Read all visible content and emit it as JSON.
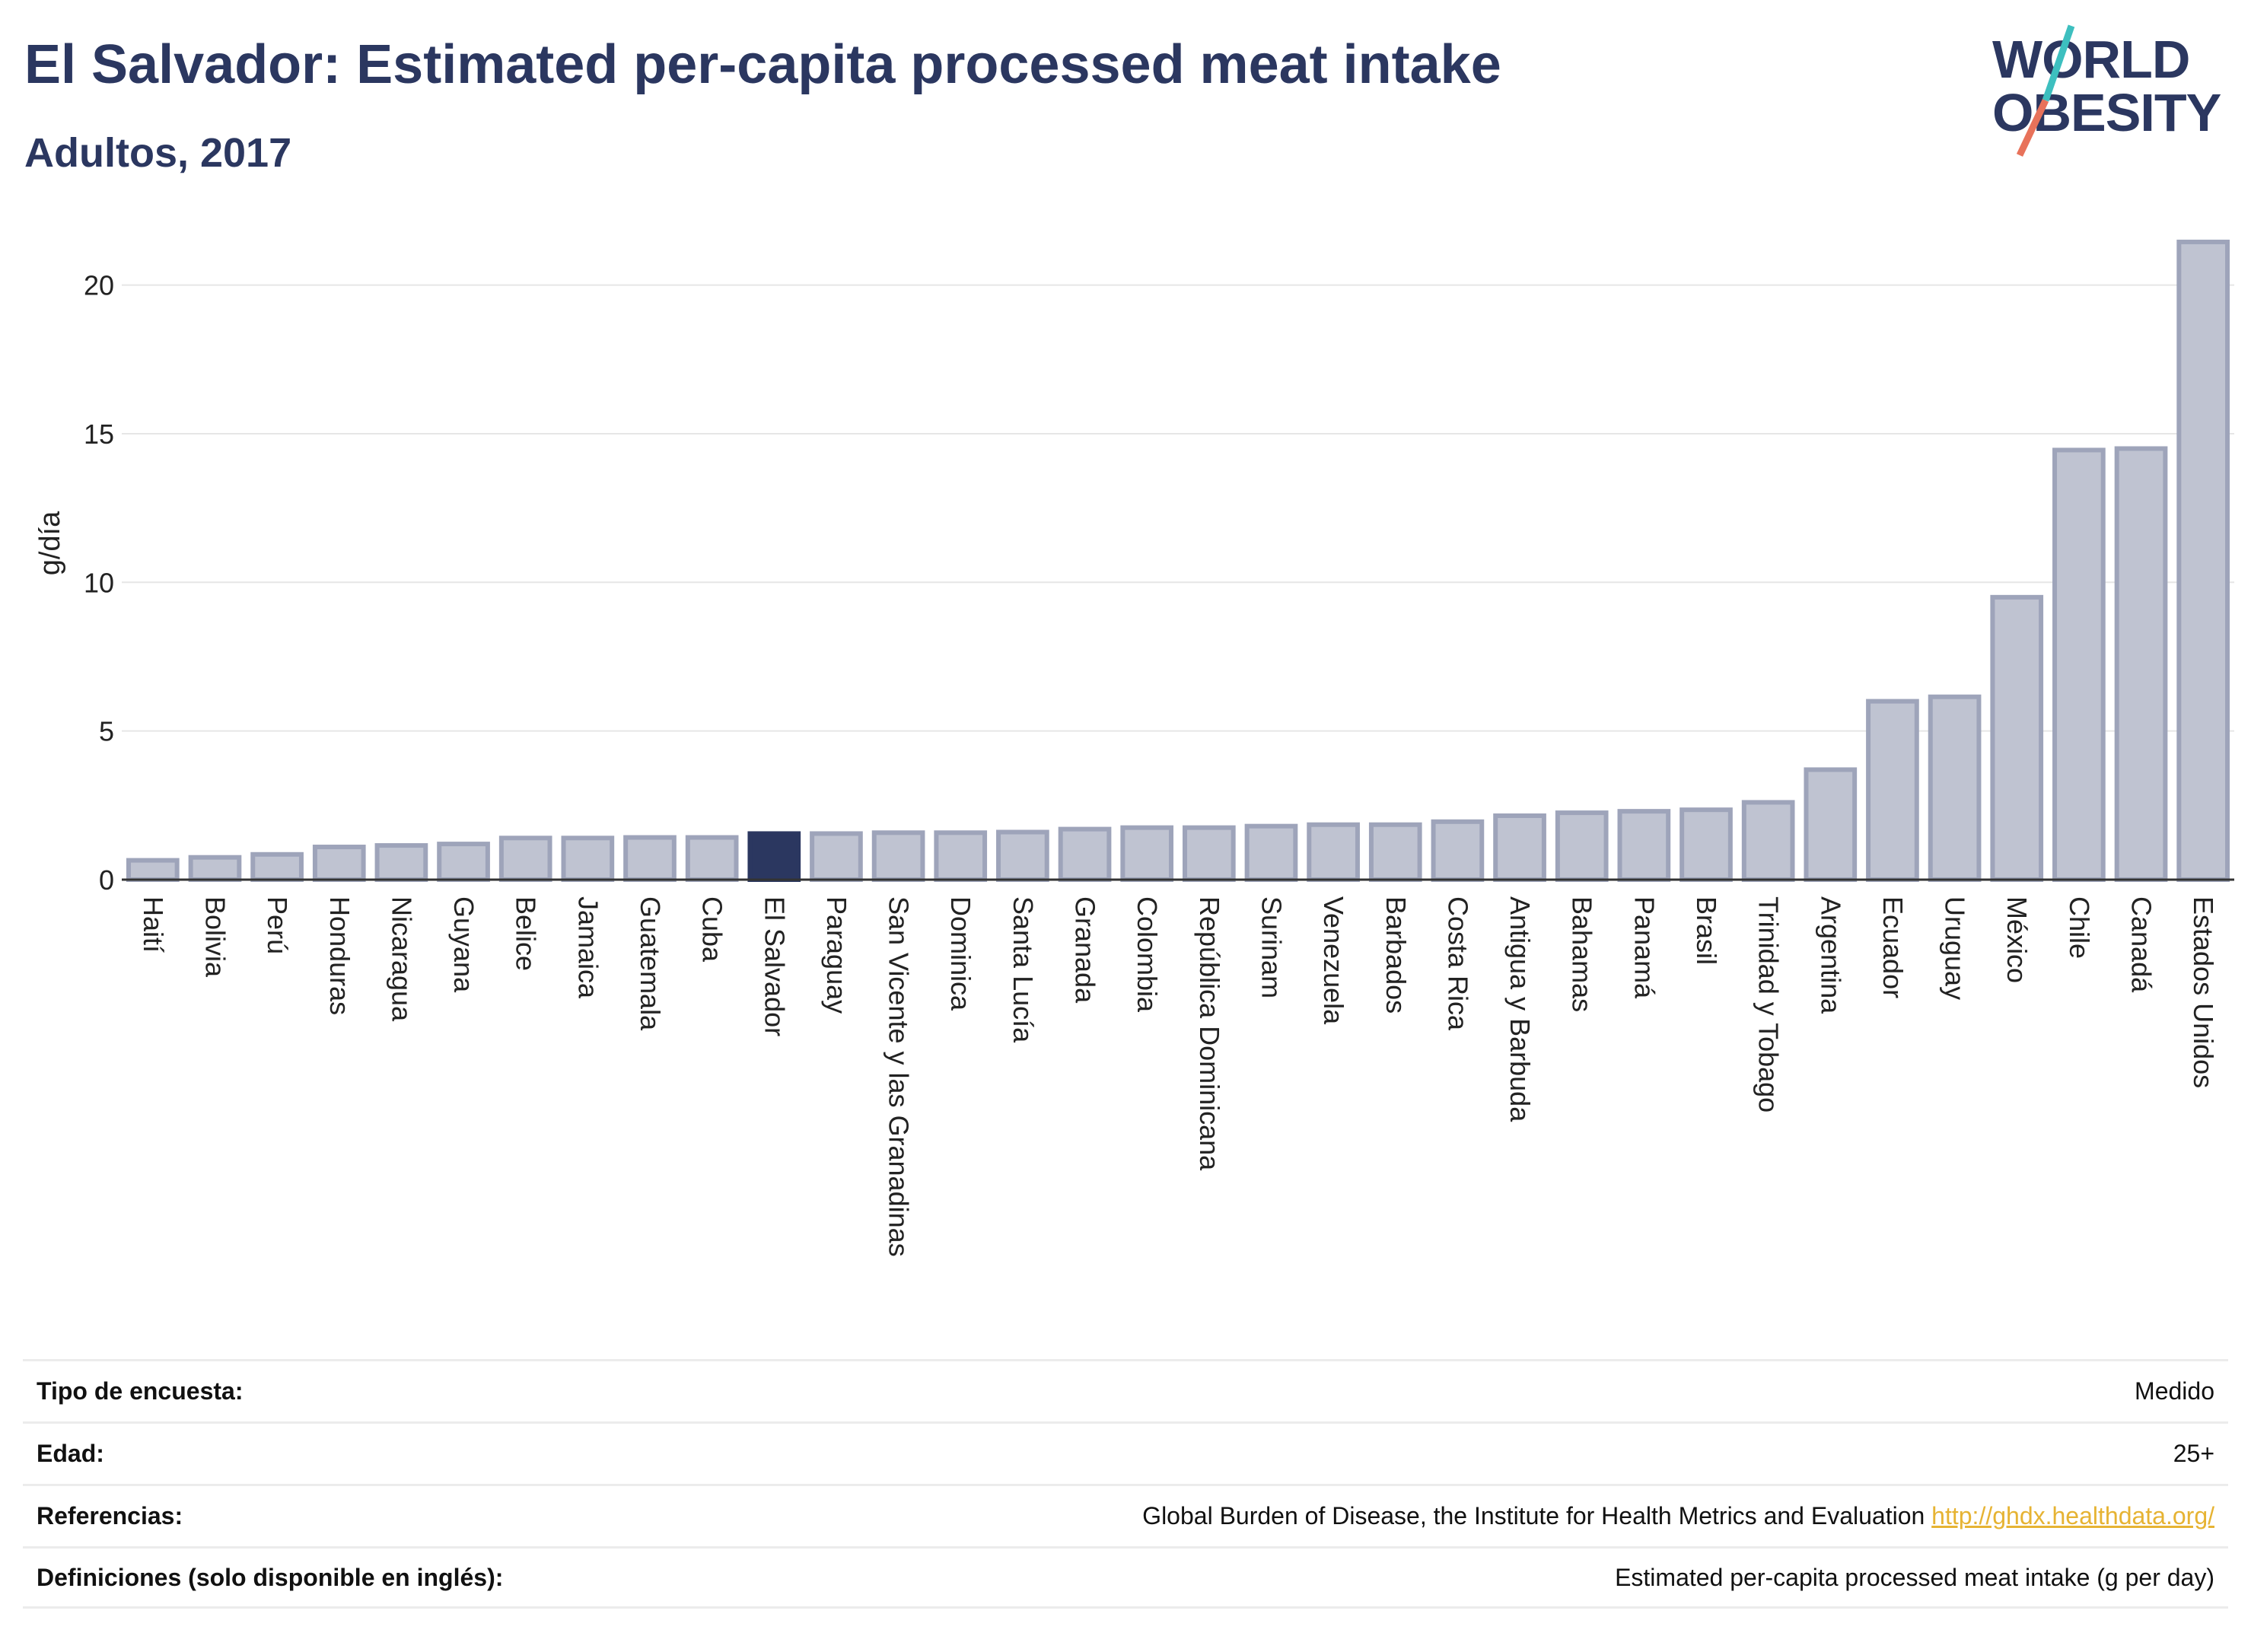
{
  "header": {
    "title": "El Salvador: Estimated per-capita processed meat intake",
    "subtitle": "Adultos, 2017"
  },
  "logo": {
    "line1": "WORLD",
    "line2": "OBESITY",
    "colors": {
      "text": "#2b3760",
      "slash_top": "#3dbfbf",
      "slash_bottom": "#e8725a"
    }
  },
  "colors": {
    "bar": "#bfc3d1",
    "bar_border": "#9ea4ba",
    "highlight": "#2b3760",
    "grid": "#e6e6e6"
  },
  "chart_data": {
    "type": "bar",
    "ylabel": "g/día",
    "ylim": [
      0,
      21.5
    ],
    "yticks": [
      0,
      5,
      10,
      15,
      20
    ],
    "grid": true,
    "highlight": "El Salvador",
    "categories": [
      "Haití",
      "Bolivia",
      "Perú",
      "Honduras",
      "Nicaragua",
      "Guyana",
      "Belice",
      "Jamaica",
      "Guatemala",
      "Cuba",
      "El Salvador",
      "Paraguay",
      "San Vicente y las Granadinas",
      "Dominica",
      "Santa Lucía",
      "Granada",
      "Colombia",
      "República Dominicana",
      "Surinam",
      "Venezuela",
      "Barbados",
      "Costa Rica",
      "Antigua y Barbuda",
      "Bahamas",
      "Panamá",
      "Brasil",
      "Trinidad y Tobago",
      "Argentina",
      "Ecuador",
      "Uruguay",
      "México",
      "Chile",
      "Canadá",
      "Estados Unidos"
    ],
    "values": [
      0.65,
      0.75,
      0.85,
      1.1,
      1.15,
      1.2,
      1.4,
      1.4,
      1.42,
      1.42,
      1.55,
      1.55,
      1.58,
      1.58,
      1.6,
      1.7,
      1.75,
      1.75,
      1.8,
      1.85,
      1.85,
      1.95,
      2.15,
      2.25,
      2.3,
      2.35,
      2.6,
      3.7,
      6.0,
      6.15,
      9.5,
      14.45,
      14.5,
      21.45
    ]
  },
  "info": {
    "rows": [
      {
        "label": "Tipo de encuesta:",
        "value": "Medido"
      },
      {
        "label": "Edad:",
        "value": "25+"
      },
      {
        "label": "Referencias:",
        "value": "Global Burden of Disease, the Institute for Health Metrics and Evaluation",
        "link": "http://ghdx.healthdata.org/"
      },
      {
        "label": "Definiciones (solo disponible en inglés):",
        "value": "Estimated per-capita processed meat intake (g per day)"
      }
    ]
  }
}
